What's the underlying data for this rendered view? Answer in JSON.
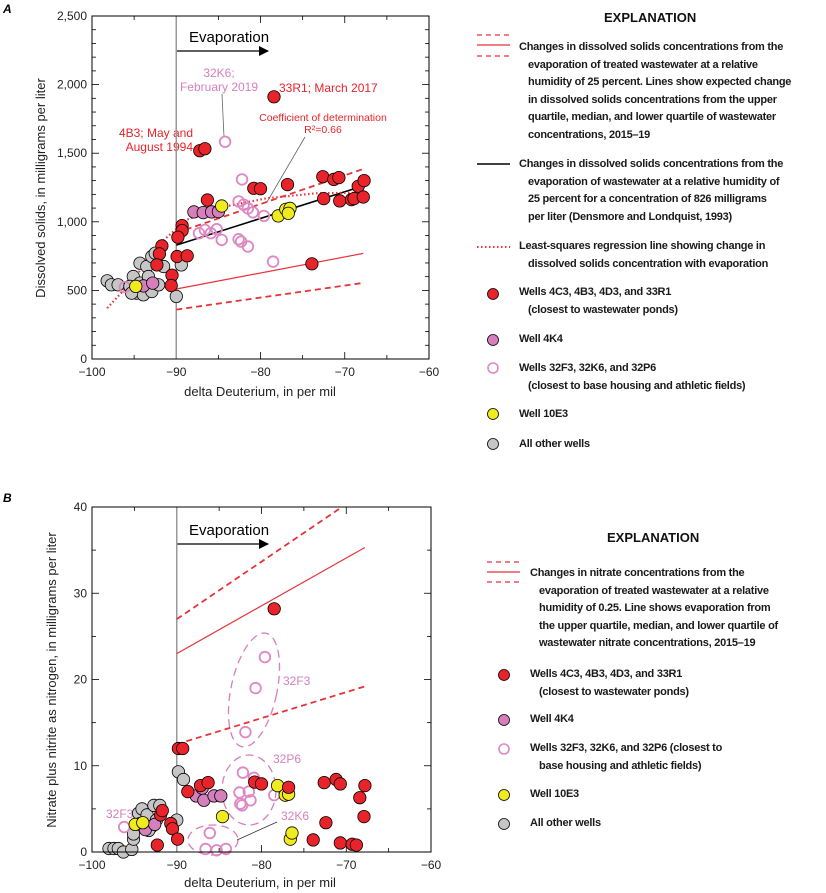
{
  "colors": {
    "red_wells": "#e8232a",
    "well_4K4": "#d67fbd",
    "open_wells": "#dd88c4",
    "well_10E3": "#f0eb1e",
    "other_wells": "#c6c6c6",
    "wastewater_lines": "#e8323a",
    "densmore_line": "#000000",
    "evaporation_start_line": "#999999"
  },
  "chart_data": [
    {
      "panel": "A",
      "type": "scatter",
      "xlabel": "delta Deuterium, in per mil",
      "ylabel": "Dissolved solids, in milligrams per liter",
      "xlim": [
        -100,
        -60
      ],
      "ylim": [
        0,
        2500
      ],
      "xticks": [
        "−100",
        "−90",
        "−80",
        "−70",
        "−60"
      ],
      "yticks": [
        "0",
        "500",
        "1,000",
        "1,500",
        "2,000",
        "2,500"
      ],
      "grid": false,
      "evaporation_label": "Evaporation",
      "annotations": {
        "k6": [
          "32K6;",
          "February 2019"
        ],
        "r1": "33R1; March 2017",
        "b3": [
          "4B3; May and",
          "August 1994"
        ],
        "r2": [
          "Coefficient of determination",
          "R²=0.66"
        ]
      },
      "series": [
        {
          "key": "red",
          "points": [
            [
              -78.4,
              1911
            ],
            [
              -87.2,
              1518
            ],
            [
              -86.6,
              1533
            ],
            [
              -86.3,
              1159
            ],
            [
              -89.3,
              972
            ],
            [
              -89.3,
              936
            ],
            [
              -89.8,
              888
            ],
            [
              -91.7,
              824
            ],
            [
              -92.0,
              766
            ],
            [
              -92.3,
              686
            ],
            [
              -89.9,
              747
            ],
            [
              -88.7,
              752
            ],
            [
              -90.5,
              611
            ],
            [
              -90.6,
              536
            ],
            [
              -80.8,
              1244
            ],
            [
              -80.0,
              1241
            ],
            [
              -76.8,
              1271
            ],
            [
              -72.6,
              1329
            ],
            [
              -71.3,
              1309
            ],
            [
              -70.7,
              1322
            ],
            [
              -72.5,
              1169
            ],
            [
              -70.6,
              1152
            ],
            [
              -69.2,
              1162
            ],
            [
              -68.9,
              1169
            ],
            [
              -68.4,
              1259
            ],
            [
              -67.7,
              1300
            ],
            [
              -67.8,
              1181
            ],
            [
              -73.9,
              694
            ]
          ]
        },
        {
          "key": "4K4",
          "points": [
            [
              -87.9,
              1072
            ],
            [
              -86.8,
              1067
            ],
            [
              -85.8,
              1072
            ],
            [
              -85.0,
              1074
            ],
            [
              -93.9,
              533
            ],
            [
              -92.8,
              553
            ]
          ]
        },
        {
          "key": "open",
          "points": [
            [
              -84.2,
              1583
            ],
            [
              -82.2,
              1309
            ],
            [
              -82.6,
              1149
            ],
            [
              -82.0,
              1125
            ],
            [
              -81.5,
              1098
            ],
            [
              -80.9,
              1069
            ],
            [
              -79.6,
              1043
            ],
            [
              -84.6,
              868
            ],
            [
              -82.6,
              873
            ],
            [
              -82.3,
              856
            ],
            [
              -81.5,
              820
            ],
            [
              -78.5,
              710
            ],
            [
              -86.6,
              941
            ],
            [
              -87.3,
              917
            ],
            [
              -85.9,
              917
            ],
            [
              -85.2,
              946
            ],
            [
              -96.1,
              524
            ]
          ]
        },
        {
          "key": "10E3",
          "points": [
            [
              -84.6,
              1115
            ],
            [
              -77.9,
              1043
            ],
            [
              -77.0,
              1091
            ],
            [
              -76.5,
              1098
            ],
            [
              -76.7,
              1062
            ],
            [
              -94.8,
              529
            ]
          ]
        },
        {
          "key": "other",
          "points": [
            [
              -98.2,
              570
            ],
            [
              -97.7,
              541
            ],
            [
              -96.9,
              541
            ],
            [
              -95.1,
              601
            ],
            [
              -94.3,
              698
            ],
            [
              -93.5,
              674
            ],
            [
              -92.9,
              747
            ],
            [
              -92.5,
              771
            ],
            [
              -91.5,
              674
            ],
            [
              -94.7,
              480
            ],
            [
              -93.9,
              468
            ],
            [
              -92.9,
              492
            ],
            [
              -94.3,
              553
            ],
            [
              -93.3,
              601
            ],
            [
              -92.1,
              541
            ],
            [
              -95.5,
              529
            ],
            [
              -90.0,
              456
            ],
            [
              -89.4,
              686
            ],
            [
              -95.3,
              480
            ]
          ]
        }
      ],
      "lines": [
        {
          "key": "ww_upper",
          "style": "dashed",
          "points": [
            [
              -90,
              920
            ],
            [
              -67.8,
              1385
            ]
          ]
        },
        {
          "key": "ww_median",
          "style": "solid",
          "points": [
            [
              -90,
              510
            ],
            [
              -67.8,
              770
            ]
          ]
        },
        {
          "key": "ww_lower",
          "style": "dashed",
          "points": [
            [
              -90,
              360
            ],
            [
              -67.8,
              555
            ]
          ]
        },
        {
          "key": "densmore",
          "style": "solid-black",
          "points": [
            [
              -90,
              830
            ],
            [
              -67.8,
              1262
            ]
          ]
        },
        {
          "key": "regression",
          "style": "dotted",
          "points": [
            [
              -98.2,
              371
            ],
            [
              -95.1,
              577
            ],
            [
              -91.9,
              844
            ],
            [
              -88.8,
              1014
            ],
            [
              -85.2,
              1099
            ],
            [
              -79.3,
              1171
            ],
            [
              -73.4,
              1208
            ],
            [
              -67.8,
              1212
            ]
          ]
        }
      ]
    },
    {
      "panel": "B",
      "type": "scatter",
      "xlabel": "delta Deuterium, in per mil",
      "ylabel": "Nitrate plus nitrite as nitrogen,  in milligrams per liter",
      "xlim": [
        -100,
        -60
      ],
      "ylim": [
        0,
        40
      ],
      "xticks": [
        "−100",
        "−90",
        "−80",
        "−70",
        "−60"
      ],
      "yticks": [
        "0",
        "10",
        "20",
        "30",
        "40"
      ],
      "grid": false,
      "evaporation_label": "Evaporation",
      "annotations": {
        "f3": "32F3",
        "p6": "32P6",
        "k6": "32K6",
        "f3b": "32F3"
      },
      "series": [
        {
          "key": "red",
          "points": [
            [
              -78.5,
              28.2
            ],
            [
              -89.8,
              12.0
            ],
            [
              -89.3,
              12.0
            ],
            [
              -87.2,
              7.7
            ],
            [
              -86.3,
              8.05
            ],
            [
              -88.7,
              7.0
            ],
            [
              -80.8,
              8.1
            ],
            [
              -80.0,
              7.9
            ],
            [
              -76.8,
              7.5
            ],
            [
              -72.6,
              8.05
            ],
            [
              -71.2,
              8.4
            ],
            [
              -70.7,
              7.9
            ],
            [
              -67.8,
              7.7
            ],
            [
              -68.4,
              6.3
            ],
            [
              -67.9,
              4.1
            ],
            [
              -72.4,
              3.4
            ],
            [
              -73.9,
              1.4
            ],
            [
              -70.7,
              1.05
            ],
            [
              -69.3,
              0.9
            ],
            [
              -68.8,
              0.8
            ],
            [
              -90.7,
              3.3
            ],
            [
              -90.5,
              2.7
            ],
            [
              -89.9,
              1.5
            ],
            [
              -92.3,
              0.8
            ],
            [
              -91.9,
              4.3
            ],
            [
              -91.7,
              4.8
            ]
          ]
        },
        {
          "key": "4K4",
          "points": [
            [
              -87.7,
              6.5
            ],
            [
              -87.0,
              7.4
            ],
            [
              -86.8,
              6.0
            ],
            [
              -85.6,
              6.5
            ],
            [
              -84.8,
              6.5
            ],
            [
              -93.7,
              2.6
            ],
            [
              -92.6,
              3.2
            ]
          ]
        },
        {
          "key": "open",
          "points": [
            [
              -79.6,
              22.6
            ],
            [
              -80.7,
              19.0
            ],
            [
              -81.9,
              13.9
            ],
            [
              -82.2,
              9.2
            ],
            [
              -80.9,
              8.6
            ],
            [
              -82.6,
              6.9
            ],
            [
              -81.5,
              7.0
            ],
            [
              -81.3,
              6.0
            ],
            [
              -82.3,
              5.4
            ],
            [
              -82.5,
              5.6
            ],
            [
              -78.5,
              6.6
            ],
            [
              -86.1,
              2.2
            ],
            [
              -86.6,
              0.35
            ],
            [
              -85.3,
              0.2
            ],
            [
              -84.2,
              0.35
            ],
            [
              -96.2,
              2.9
            ]
          ]
        },
        {
          "key": "10E3",
          "points": [
            [
              -78.1,
              7.7
            ],
            [
              -77.2,
              6.6
            ],
            [
              -76.8,
              6.7
            ],
            [
              -84.6,
              4.1
            ],
            [
              -76.6,
              1.5
            ],
            [
              -76.4,
              2.2
            ],
            [
              -94.9,
              3.2
            ],
            [
              -94.0,
              3.4
            ]
          ]
        },
        {
          "key": "other",
          "points": [
            [
              -98.0,
              0.4
            ],
            [
              -97.4,
              0.4
            ],
            [
              -96.9,
              0.4
            ],
            [
              -96.3,
              0.0
            ],
            [
              -95.3,
              0.3
            ],
            [
              -95.1,
              1.5
            ],
            [
              -95.1,
              2.1
            ],
            [
              -94.5,
              4.5
            ],
            [
              -94.1,
              5.0
            ],
            [
              -93.5,
              4.3
            ],
            [
              -92.7,
              5.4
            ],
            [
              -92.0,
              5.4
            ],
            [
              -93.0,
              2.9
            ],
            [
              -92.4,
              3.7
            ],
            [
              -89.8,
              9.3
            ],
            [
              -89.2,
              8.4
            ],
            [
              -90.0,
              3.7
            ],
            [
              -94.3,
              3.3
            ],
            [
              -93.3,
              2.5
            ]
          ]
        }
      ],
      "lines": [
        {
          "key": "ww_upper",
          "style": "dashed",
          "points": [
            [
              -90,
              27
            ],
            [
              -70.5,
              40
            ]
          ]
        },
        {
          "key": "ww_median",
          "style": "solid",
          "points": [
            [
              -90,
              23
            ],
            [
              -67.8,
              35.3
            ]
          ]
        },
        {
          "key": "ww_lower",
          "style": "dashed",
          "points": [
            [
              -90,
              12.5
            ],
            [
              -67.8,
              19.2
            ]
          ]
        }
      ]
    }
  ],
  "legend_a": {
    "title": "EXPLANATION",
    "ww": [
      "Changes in dissolved solids concentrations from the",
      "evaporation of treated wastewater at a relative",
      "humidity of 25 percent. Lines show expected change",
      "in dissolved solids concentrations from the upper",
      "quartile, median, and lower quartile of wastewater",
      "concentrations, 2015–19"
    ],
    "densmore": [
      "Changes in dissolved solids concentrations from the",
      "evaporation of wastewater at a relative humidity of",
      "25 percent for a concentration of 826 milligrams",
      "per liter (Densmore and Londquist, 1993)"
    ],
    "regression": [
      "Least-squares regression line showing change in",
      "dissolved solids concentration with evaporation"
    ],
    "red": [
      "Wells 4C3, 4B3, 4D3, and 33R1",
      "(closest to wastewater ponds)"
    ],
    "k4": [
      "Well 4K4"
    ],
    "open": [
      "Wells 32F3, 32K6, and 32P6",
      "(closest to base housing and athletic fields)"
    ],
    "e3": [
      "Well 10E3"
    ],
    "other": [
      "All other wells"
    ]
  },
  "legend_b": {
    "title": "EXPLANATION",
    "ww": [
      "Changes in nitrate concentrations from the",
      "evaporation of treated wastewater at a relative",
      "humidity of 0.25. Line shows evaporation from",
      "the upper quartile, median, and lower quartile of",
      "wastewater nitrate concentrations, 2015–19"
    ],
    "red": [
      "Wells 4C3, 4B3, 4D3, and 33R1",
      "(closest to wastewater ponds)"
    ],
    "k4": [
      "Well 4K4"
    ],
    "open": [
      "Wells 32F3, 32K6, and 32P6 (closest to",
      "base housing and athletic fields)"
    ],
    "e3": [
      "Well 10E3"
    ],
    "other": [
      "All other wells"
    ]
  }
}
